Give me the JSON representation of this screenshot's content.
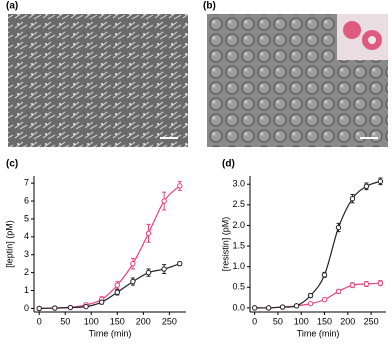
{
  "panel_labels": [
    "(a)",
    "(b)"
  ],
  "chart_data": [
    {
      "type": "line",
      "title": "(c)",
      "x_label": "Time (min)",
      "y_label": "[leptin] (pM)",
      "x": [
        0,
        30,
        60,
        90,
        120,
        150,
        180,
        210,
        240,
        270
      ],
      "xlim": [
        -10,
        282
      ],
      "xticks": [
        0,
        50,
        100,
        150,
        200,
        250
      ],
      "ylim": [
        -0.2,
        7.4
      ],
      "yticks": [
        0,
        1,
        2,
        3,
        4,
        5,
        6,
        7
      ],
      "series": [
        {
          "color": "#e8407a",
          "values": [
            0,
            0.02,
            0.05,
            0.2,
            0.5,
            1.3,
            2.5,
            4.2,
            6.0,
            6.85
          ],
          "errors": [
            0.05,
            0.05,
            0.05,
            0.1,
            0.15,
            0.2,
            0.3,
            0.5,
            0.5,
            0.25
          ]
        },
        {
          "color": "#222222",
          "values": [
            0,
            0.02,
            0.05,
            0.1,
            0.35,
            0.9,
            1.5,
            2.0,
            2.2,
            2.5
          ],
          "errors": [
            0.05,
            0.05,
            0.05,
            0.05,
            0.1,
            0.15,
            0.2,
            0.2,
            0.25,
            0.1
          ]
        }
      ]
    },
    {
      "type": "line",
      "title": "(d)",
      "x_label": "Time (min)",
      "y_label": "[resistin] (pM)",
      "x": [
        0,
        30,
        60,
        90,
        120,
        150,
        180,
        210,
        240,
        270
      ],
      "xlim": [
        -10,
        282
      ],
      "xticks": [
        0,
        50,
        100,
        150,
        200,
        250
      ],
      "ylim": [
        -0.1,
        3.2
      ],
      "yticks": [
        {
          "value": 0,
          "label": "0.0"
        },
        {
          "value": 0.5,
          "label": "0.5"
        },
        {
          "value": 1,
          "label": "1.0"
        },
        {
          "value": 1.5,
          "label": "1.5"
        },
        {
          "value": 2,
          "label": "2.0"
        },
        {
          "value": 2.5,
          "label": "2.5"
        },
        {
          "value": 3,
          "label": "3.0"
        }
      ],
      "series": [
        {
          "color": "#e8407a",
          "values": [
            0,
            0,
            0.02,
            0.05,
            0.1,
            0.2,
            0.4,
            0.55,
            0.58,
            0.6
          ],
          "errors": [
            0.02,
            0.02,
            0.02,
            0.02,
            0.03,
            0.04,
            0.05,
            0.06,
            0.06,
            0.06
          ]
        },
        {
          "color": "#222222",
          "values": [
            0,
            0,
            0.02,
            0.05,
            0.3,
            0.8,
            1.95,
            2.65,
            2.95,
            3.07
          ],
          "errors": [
            0.02,
            0.02,
            0.02,
            0.03,
            0.05,
            0.06,
            0.1,
            0.1,
            0.08,
            0.08
          ]
        }
      ]
    }
  ]
}
